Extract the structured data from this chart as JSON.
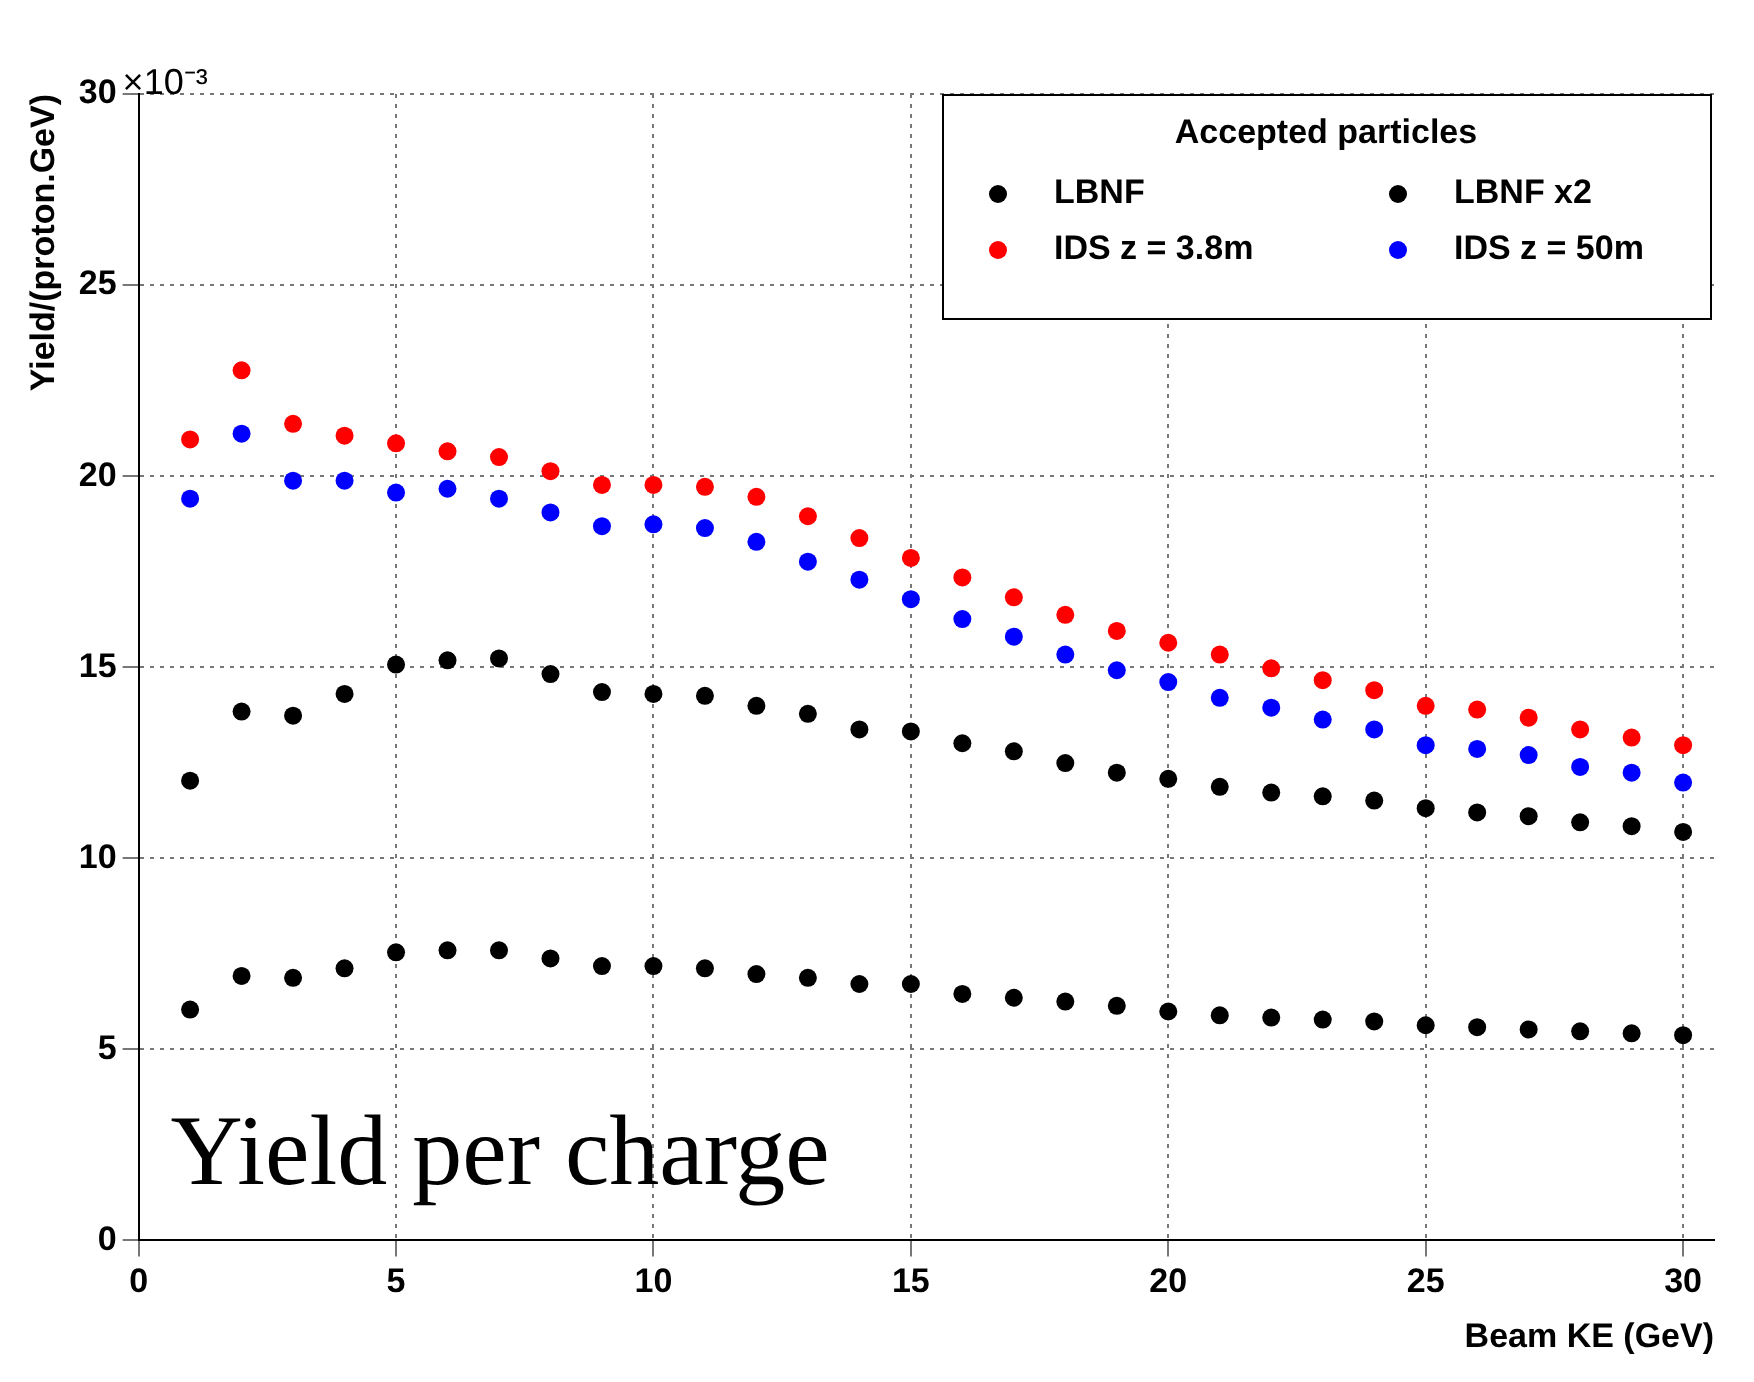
{
  "chart_data": {
    "type": "scatter",
    "xlabel": "Beam KE (GeV)",
    "ylabel": "Yield/(proton.GeV)",
    "legend_title": "Accepted particles",
    "legend": "top right",
    "grid": true,
    "marker": "circle",
    "annotations": [
      "×10⁻³",
      "Yield per charge"
    ],
    "xlim": [
      0,
      30.6
    ],
    "xticks": [
      0,
      5,
      10,
      15,
      20,
      25,
      30
    ],
    "ylim": [
      0,
      30
    ],
    "yticks": [
      0,
      5,
      10,
      15,
      20,
      25,
      30
    ],
    "x": [
      1,
      2,
      3,
      4,
      5,
      6,
      7,
      8,
      9,
      10,
      11,
      12,
      13,
      14,
      15,
      16,
      17,
      18,
      19,
      20,
      21,
      22,
      23,
      24,
      25,
      26,
      27,
      28,
      29,
      30
    ],
    "series": [
      {
        "name": "LBNF",
        "color": "#000000",
        "values": [
          6.04,
          6.92,
          6.87,
          7.12,
          7.54,
          7.59,
          7.59,
          7.38,
          7.18,
          7.18,
          7.12,
          6.97,
          6.87,
          6.71,
          6.71,
          6.45,
          6.35,
          6.25,
          6.14,
          5.99,
          5.89,
          5.83,
          5.78,
          5.73,
          5.63,
          5.58,
          5.52,
          5.47,
          5.42,
          5.37
        ]
      },
      {
        "name": "LBNF x2",
        "color": "#000000",
        "values": [
          12.03,
          13.84,
          13.73,
          14.3,
          15.07,
          15.18,
          15.23,
          14.82,
          14.35,
          14.3,
          14.25,
          13.99,
          13.78,
          13.37,
          13.32,
          13.01,
          12.8,
          12.49,
          12.24,
          12.08,
          11.87,
          11.72,
          11.62,
          11.51,
          11.31,
          11.2,
          11.1,
          10.94,
          10.84,
          10.69
        ]
      },
      {
        "name": "IDS z = 3.8m",
        "color": "#ff0000",
        "values": [
          20.96,
          22.77,
          21.37,
          21.06,
          20.86,
          20.65,
          20.5,
          20.13,
          19.77,
          19.77,
          19.72,
          19.46,
          18.95,
          18.38,
          17.86,
          17.35,
          16.83,
          16.37,
          15.95,
          15.64,
          15.33,
          14.97,
          14.66,
          14.4,
          13.99,
          13.89,
          13.68,
          13.37,
          13.16,
          12.96
        ]
      },
      {
        "name": "IDS z = 50m",
        "color": "#0000ff",
        "values": [
          19.41,
          21.11,
          19.88,
          19.88,
          19.57,
          19.67,
          19.41,
          19.05,
          18.69,
          18.74,
          18.64,
          18.28,
          17.76,
          17.29,
          16.78,
          16.26,
          15.8,
          15.33,
          14.92,
          14.61,
          14.2,
          13.94,
          13.63,
          13.37,
          12.96,
          12.86,
          12.7,
          12.39,
          12.24,
          11.98
        ]
      }
    ]
  }
}
